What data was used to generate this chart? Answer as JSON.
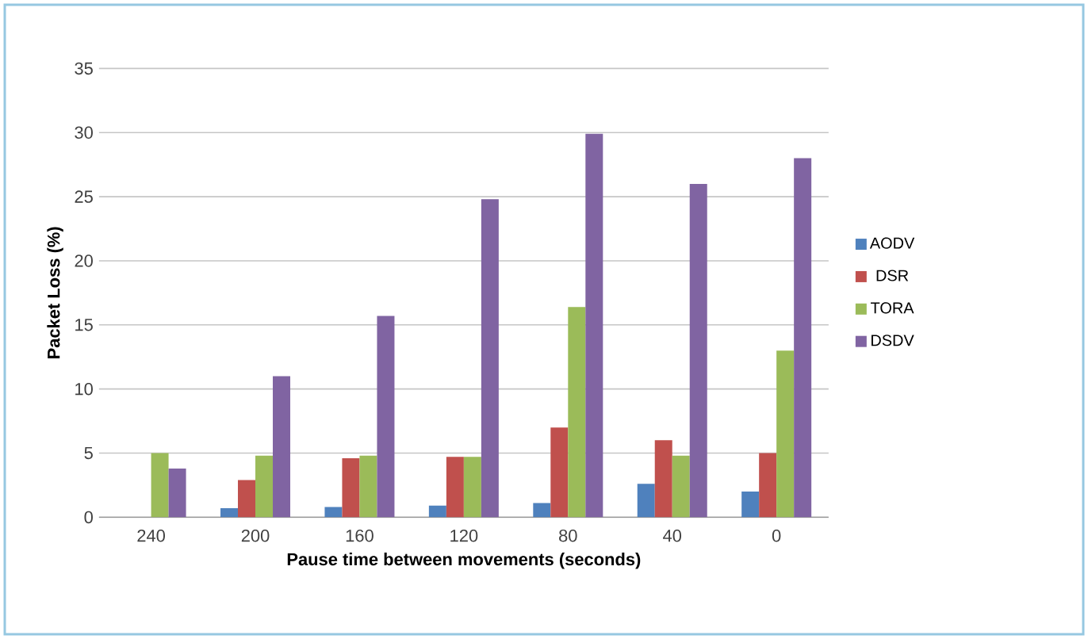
{
  "chart_data": {
    "type": "bar",
    "xlabel": "Pause time between movements (seconds)",
    "ylabel": "Packet Loss (%)",
    "categories": [
      "240",
      "200",
      "160",
      "120",
      "80",
      "40",
      "0"
    ],
    "series": [
      {
        "name": "AODV",
        "color": "#4f81bd",
        "values": [
          0,
          0.7,
          0.8,
          0.9,
          1.1,
          2.6,
          2
        ]
      },
      {
        "name": "DSR",
        "color": "#c0504d",
        "values": [
          0,
          2.9,
          4.6,
          4.7,
          7,
          6,
          5
        ]
      },
      {
        "name": "TORA",
        "color": "#9bbb59",
        "values": [
          5,
          4.8,
          4.8,
          4.7,
          16.4,
          4.8,
          13
        ]
      },
      {
        "name": "DSDV",
        "color": "#8064a2",
        "values": [
          3.8,
          11,
          15.7,
          24.8,
          29.9,
          26,
          28
        ]
      }
    ],
    "ylim": [
      0,
      35
    ],
    "yticks": [
      0,
      5,
      10,
      15,
      20,
      25,
      30,
      35
    ],
    "grid": "y",
    "legend": "right"
  }
}
